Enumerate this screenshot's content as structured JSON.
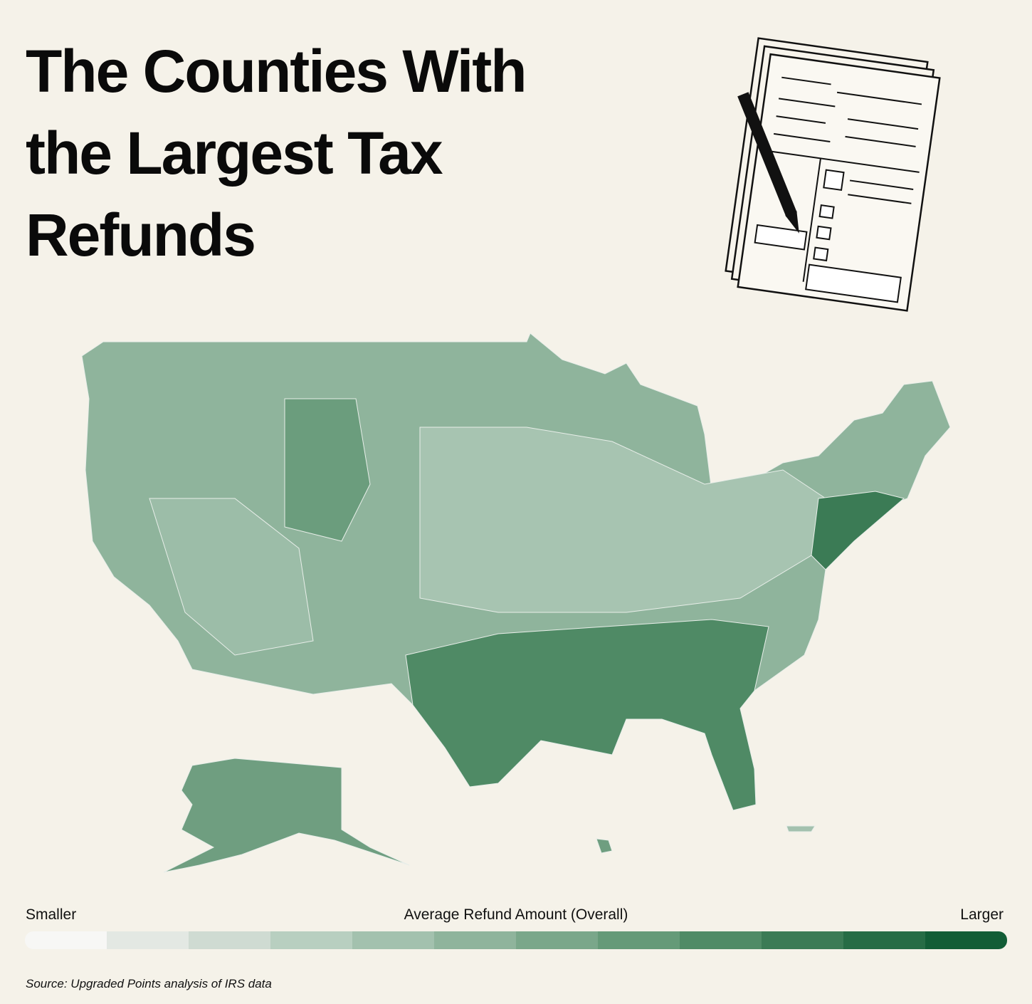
{
  "header": {
    "title_lines": [
      "The Counties With",
      "the Largest Tax",
      "Refunds"
    ]
  },
  "legend": {
    "low_label": "Smaller",
    "title": "Average Refund Amount (Overall)",
    "high_label": "Larger",
    "colors": [
      "#f7f7f5",
      "#e3e8e3",
      "#cfdbd2",
      "#b8cfc0",
      "#a3c1ae",
      "#8fb49c",
      "#7aa78a",
      "#659a78",
      "#508b66",
      "#3b7b55",
      "#266c45",
      "#125d36"
    ]
  },
  "footer": {
    "source": "Source: Upgraded Points analysis of IRS data"
  }
}
